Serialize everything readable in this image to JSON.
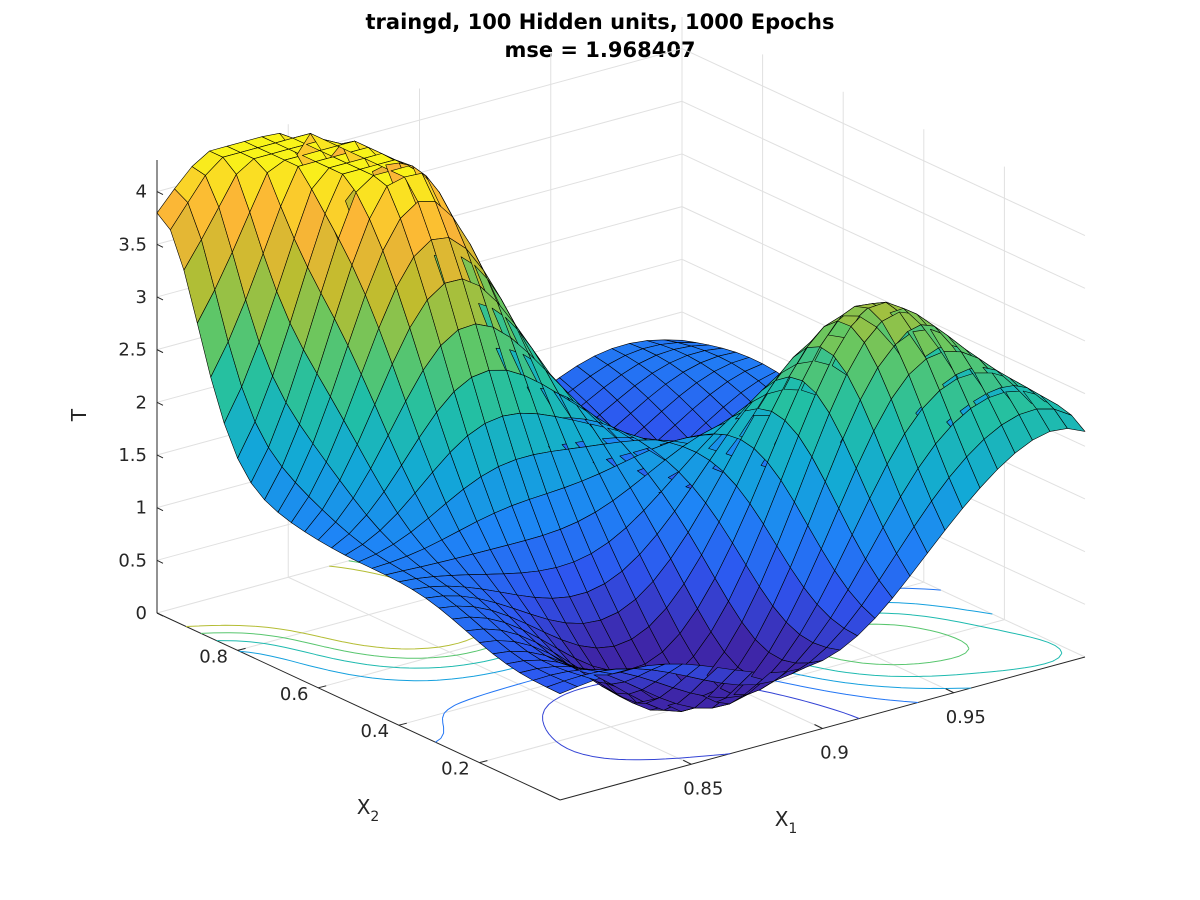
{
  "chart_data": {
    "type": "surface",
    "title": "traingd, 100 Hidden units, 1000 Epochs",
    "subtitle": "mse = 1.968407",
    "xlabel": {
      "main": "X",
      "sub": "1"
    },
    "ylabel": {
      "main": "X",
      "sub": "2"
    },
    "zlabel": "T",
    "xlim": [
      0.8,
      1.0
    ],
    "ylim": [
      0.0,
      1.0
    ],
    "zlim": [
      0,
      4.3
    ],
    "x_ticks": [
      0.85,
      0.9,
      0.95
    ],
    "x_tick_labels": [
      "0.85",
      "0.9",
      "0.95"
    ],
    "y_ticks": [
      0.2,
      0.4,
      0.6,
      0.8
    ],
    "y_tick_labels": [
      "0.2",
      "0.4",
      "0.6",
      "0.8"
    ],
    "z_ticks": [
      0,
      0.5,
      1,
      1.5,
      2,
      2.5,
      3,
      3.5,
      4
    ],
    "z_tick_labels": [
      "0",
      "0.5",
      "1",
      "1.5",
      "2",
      "2.5",
      "3",
      "3.5",
      "4"
    ],
    "grid": true,
    "colormap": "parula",
    "surface_color_range": [
      0.5,
      4.3
    ],
    "contour_levels": [
      0.8,
      1.3,
      1.8,
      2.3,
      2.8,
      3.3
    ],
    "colors": {
      "parula": [
        "#3e26a8",
        "#2e55ef",
        "#1e85f6",
        "#12a9d6",
        "#21bfa5",
        "#62c764",
        "#bebc2e",
        "#fbb437",
        "#f9fb15"
      ],
      "edge": "#000000",
      "axis": "#262626",
      "grid": "#e0e0e0"
    },
    "surface_samples": [
      {
        "x1": 0.8,
        "x2": 0.95,
        "t": 3.5
      },
      {
        "x1": 0.84,
        "x2": 0.85,
        "t": 4.2
      },
      {
        "x1": 0.86,
        "x2": 0.65,
        "t": 4.2
      },
      {
        "x1": 0.9,
        "x2": 0.45,
        "t": 2.6
      },
      {
        "x1": 0.95,
        "x2": 0.25,
        "t": 2.8
      },
      {
        "x1": 0.97,
        "x2": 0.45,
        "t": 1.6
      },
      {
        "x1": 1.0,
        "x2": 0.1,
        "t": 1.6
      },
      {
        "x1": 0.86,
        "x2": 0.15,
        "t": 0.4
      }
    ]
  }
}
